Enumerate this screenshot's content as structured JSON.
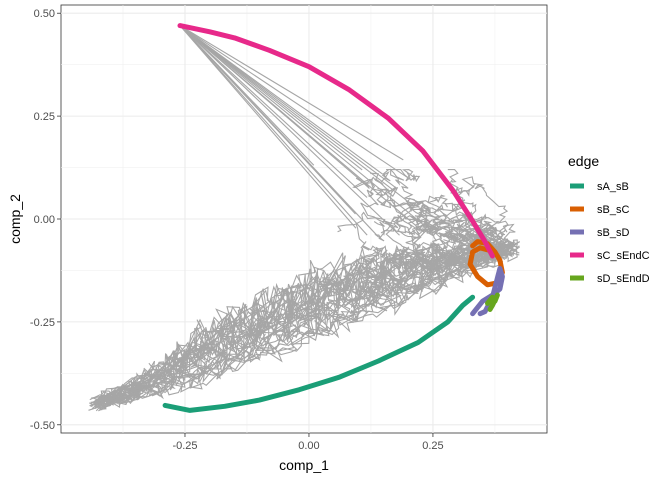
{
  "chart_data": {
    "type": "line",
    "xlabel": "comp_1",
    "ylabel": "comp_2",
    "xlim": [
      -0.5,
      0.48
    ],
    "ylim": [
      -0.52,
      0.52
    ],
    "x_ticks": [
      -0.25,
      0.0,
      0.25
    ],
    "x_tick_labels": [
      "-0.25",
      "0.00",
      "0.25"
    ],
    "y_ticks": [
      -0.5,
      -0.25,
      0.0,
      0.25,
      0.5
    ],
    "y_tick_labels": [
      "-0.50",
      "-0.25",
      "0.00",
      "0.25",
      "0.50"
    ],
    "grid": true,
    "legend_position": "right",
    "legend_title": "edge",
    "background_trajectories_color": "#a6a6a6",
    "series": [
      {
        "name": "sA_sB",
        "color": "#1b9e77",
        "x": [
          -0.29,
          -0.24,
          -0.17,
          -0.1,
          -0.02,
          0.06,
          0.14,
          0.22,
          0.28,
          0.31,
          0.33
        ],
        "y": [
          -0.453,
          -0.465,
          -0.455,
          -0.44,
          -0.415,
          -0.385,
          -0.345,
          -0.3,
          -0.25,
          -0.21,
          -0.19
        ]
      },
      {
        "name": "sB_sC",
        "color": "#d95f02",
        "x": [
          0.33,
          0.34,
          0.36,
          0.375,
          0.385,
          0.39,
          0.38,
          0.36,
          0.34,
          0.325,
          0.33,
          0.345,
          0.36
        ],
        "y": [
          -0.065,
          -0.055,
          -0.06,
          -0.08,
          -0.1,
          -0.13,
          -0.155,
          -0.16,
          -0.14,
          -0.11,
          -0.08,
          -0.07,
          -0.075
        ]
      },
      {
        "name": "sB_sD",
        "color": "#7570b3",
        "x": [
          0.33,
          0.35,
          0.37,
          0.385,
          0.39,
          0.385,
          0.37,
          0.355,
          0.345
        ],
        "y": [
          -0.23,
          -0.2,
          -0.185,
          -0.17,
          -0.14,
          -0.12,
          -0.19,
          -0.225,
          -0.23
        ]
      },
      {
        "name": "sC_sEndC",
        "color": "#e7298a",
        "x": [
          -0.26,
          -0.2,
          -0.15,
          -0.08,
          0.0,
          0.08,
          0.16,
          0.23,
          0.29,
          0.33,
          0.355,
          0.37
        ],
        "y": [
          0.47,
          0.455,
          0.44,
          0.41,
          0.37,
          0.315,
          0.245,
          0.165,
          0.07,
          -0.005,
          -0.055,
          -0.09
        ]
      },
      {
        "name": "sD_sEndD",
        "color": "#66a61e",
        "x": [
          0.36,
          0.37,
          0.375,
          0.38,
          0.37,
          0.365
        ],
        "y": [
          -0.205,
          -0.19,
          -0.2,
          -0.185,
          -0.21,
          -0.22
        ]
      }
    ]
  }
}
